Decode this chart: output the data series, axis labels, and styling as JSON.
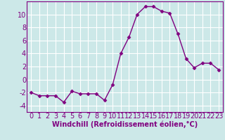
{
  "x": [
    0,
    1,
    2,
    3,
    4,
    5,
    6,
    7,
    8,
    9,
    10,
    11,
    12,
    13,
    14,
    15,
    16,
    17,
    18,
    19,
    20,
    21,
    22,
    23
  ],
  "y": [
    -2,
    -2.5,
    -2.5,
    -2.5,
    -3.5,
    -1.8,
    -2.2,
    -2.2,
    -2.2,
    -3.2,
    -0.8,
    4,
    6.5,
    10,
    11.2,
    11.2,
    10.5,
    10.2,
    7,
    3.2,
    1.8,
    2.5,
    2.5,
    1.5
  ],
  "line_color": "#800080",
  "marker": "D",
  "marker_size": 2.5,
  "background_color": "#cce8e8",
  "grid_color": "#b0d0d0",
  "xlabel": "Windchill (Refroidissement éolien,°C)",
  "xlabel_fontsize": 7,
  "tick_fontsize": 7,
  "ylim": [
    -5,
    12
  ],
  "xlim": [
    -0.5,
    23.5
  ],
  "yticks": [
    -4,
    -2,
    0,
    2,
    4,
    6,
    8,
    10
  ],
  "xticks": [
    0,
    1,
    2,
    3,
    4,
    5,
    6,
    7,
    8,
    9,
    10,
    11,
    12,
    13,
    14,
    15,
    16,
    17,
    18,
    19,
    20,
    21,
    22,
    23
  ],
  "spine_color": "#800080",
  "linewidth": 1.0
}
